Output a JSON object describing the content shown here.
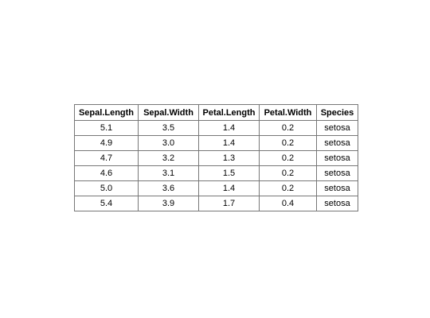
{
  "chart_data": {
    "type": "table",
    "columns": [
      "Sepal.Length",
      "Sepal.Width",
      "Petal.Length",
      "Petal.Width",
      "Species"
    ],
    "rows": [
      [
        "5.1",
        "3.5",
        "1.4",
        "0.2",
        "setosa"
      ],
      [
        "4.9",
        "3.0",
        "1.4",
        "0.2",
        "setosa"
      ],
      [
        "4.7",
        "3.2",
        "1.3",
        "0.2",
        "setosa"
      ],
      [
        "4.6",
        "3.1",
        "1.5",
        "0.2",
        "setosa"
      ],
      [
        "5.0",
        "3.6",
        "1.4",
        "0.2",
        "setosa"
      ],
      [
        "5.4",
        "3.9",
        "1.7",
        "0.4",
        "setosa"
      ]
    ]
  }
}
